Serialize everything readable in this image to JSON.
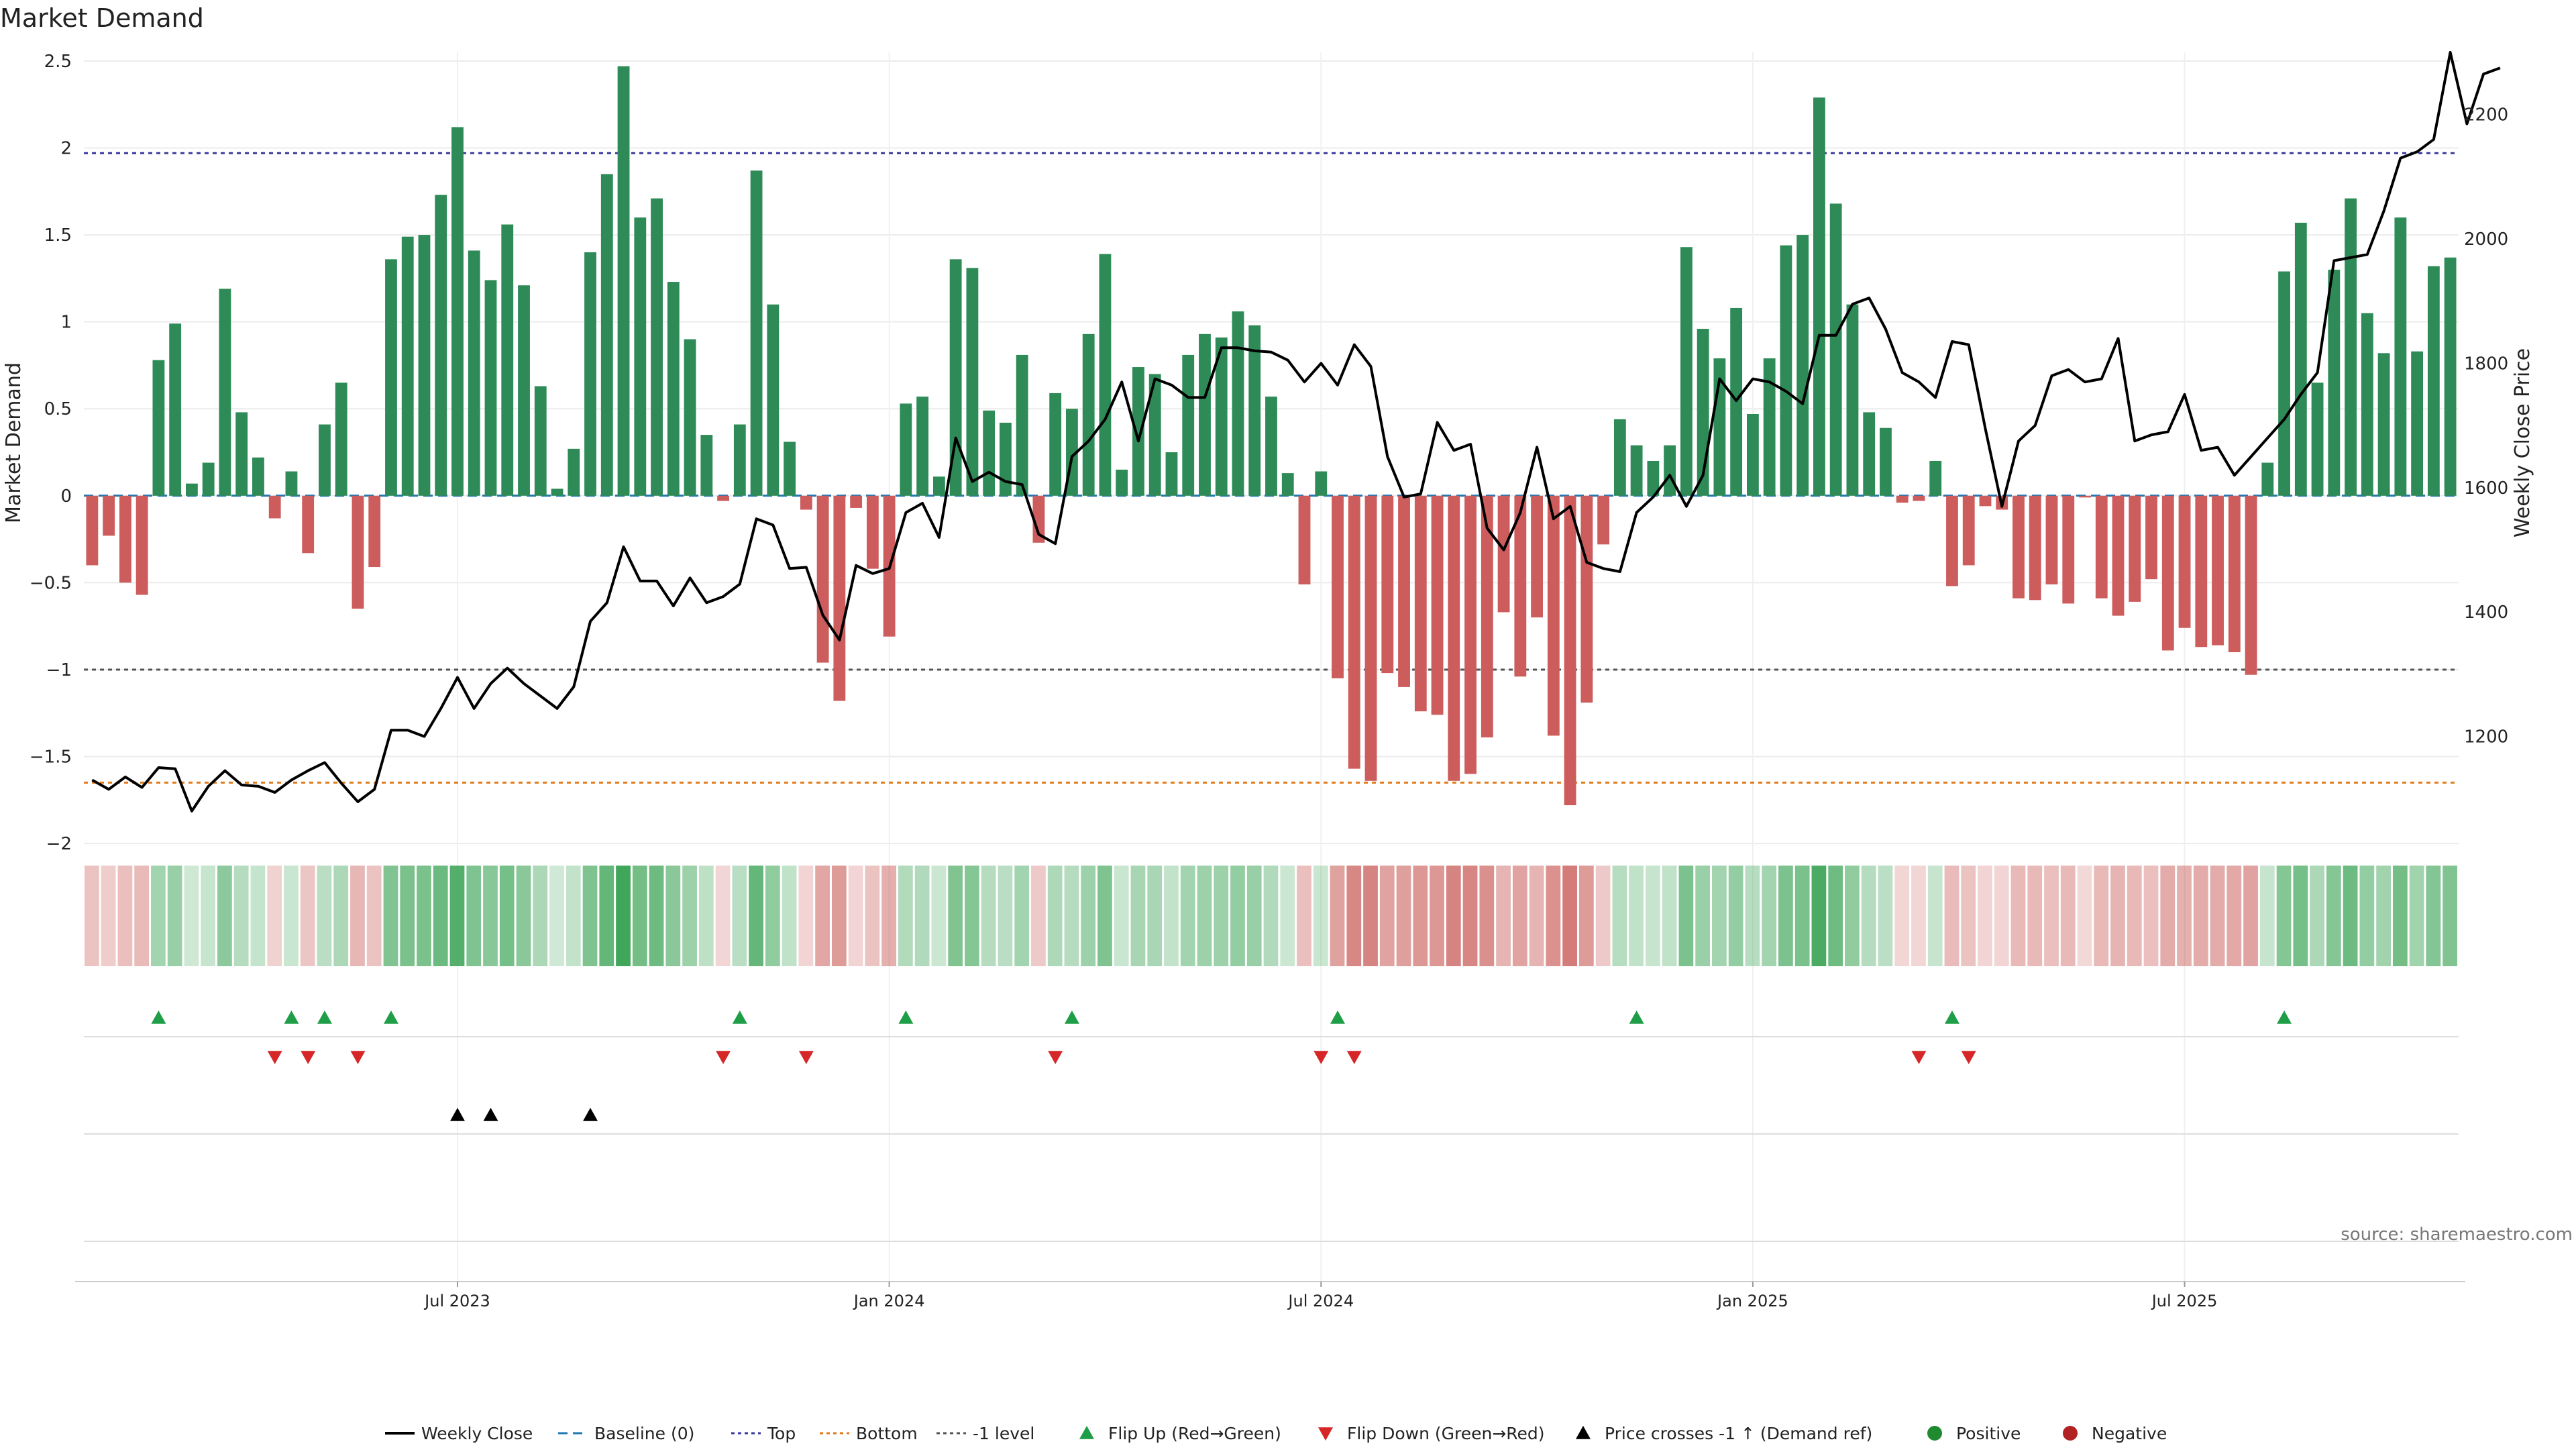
{
  "chart_data": {
    "type": "bar",
    "title": "Market Demand",
    "ylabel": "Market Demand",
    "y2label": "Weekly Close Price",
    "source": "source: sharemaestro.com",
    "ylim": [
      -2.1,
      2.55
    ],
    "y2lim": [
      1000,
      2300
    ],
    "y_ticks": [
      {
        "v": 2.5,
        "label": "2.5"
      },
      {
        "v": 2,
        "label": "2"
      },
      {
        "v": 1.5,
        "label": "1.5"
      },
      {
        "v": 1,
        "label": "1"
      },
      {
        "v": 0.5,
        "label": "0.5"
      },
      {
        "v": 0,
        "label": "0"
      },
      {
        "v": -0.5,
        "label": "−0.5"
      },
      {
        "v": -1,
        "label": "−1"
      },
      {
        "v": -1.5,
        "label": "−1.5"
      },
      {
        "v": -2,
        "label": "−2"
      }
    ],
    "y2_ticks": [
      {
        "v": 2200,
        "label": "2200"
      },
      {
        "v": 2000,
        "label": "2000"
      },
      {
        "v": 1800,
        "label": "1800"
      },
      {
        "v": 1600,
        "label": "1600"
      },
      {
        "v": 1400,
        "label": "1400"
      },
      {
        "v": 1200,
        "label": "1200"
      }
    ],
    "x_ticks": [
      {
        "i": 22,
        "label": "Jul 2023"
      },
      {
        "i": 48,
        "label": "Jan 2024"
      },
      {
        "i": 74,
        "label": "Jul 2024"
      },
      {
        "i": 100,
        "label": "Jan 2025"
      },
      {
        "i": 126,
        "label": "Jul 2025"
      }
    ],
    "reference_lines": {
      "top": 1.97,
      "bottom": -1.65,
      "minus_one": -1.0
    },
    "demand": [
      -0.4,
      -0.23,
      -0.5,
      -0.57,
      0.78,
      0.99,
      0.07,
      0.19,
      1.19,
      0.48,
      0.22,
      -0.13,
      0.14,
      -0.33,
      0.41,
      0.65,
      -0.65,
      -0.41,
      1.36,
      1.49,
      1.5,
      1.73,
      2.12,
      1.41,
      1.24,
      1.56,
      1.21,
      0.63,
      0.04,
      0.27,
      1.4,
      1.85,
      2.47,
      1.6,
      1.71,
      1.23,
      0.9,
      0.35,
      -0.03,
      0.41,
      1.87,
      1.1,
      0.31,
      -0.08,
      -0.96,
      -1.18,
      -0.07,
      -0.42,
      -0.81,
      0.53,
      0.57,
      0.11,
      1.36,
      1.31,
      0.49,
      0.42,
      0.81,
      -0.27,
      0.59,
      0.5,
      0.93,
      1.39,
      0.15,
      0.74,
      0.7,
      0.25,
      0.81,
      0.93,
      0.91,
      1.06,
      0.98,
      0.57,
      0.13,
      -0.51,
      0.14,
      -1.05,
      -1.57,
      -1.64,
      -1.02,
      -1.1,
      -1.24,
      -1.26,
      -1.64,
      -1.6,
      -1.39,
      -0.67,
      -1.04,
      -0.7,
      -1.38,
      -1.78,
      -1.19,
      -0.28,
      0.44,
      0.29,
      0.2,
      0.29,
      1.43,
      0.96,
      0.79,
      1.08,
      0.47,
      0.79,
      1.44,
      1.5,
      2.29,
      1.68,
      1.1,
      0.48,
      0.39,
      -0.04,
      -0.03,
      0.2,
      -0.52,
      -0.4,
      -0.06,
      -0.08,
      -0.59,
      -0.6,
      -0.51,
      -0.62,
      -0.01,
      -0.59,
      -0.69,
      -0.61,
      -0.48,
      -0.89,
      -0.76,
      -0.87,
      -0.86,
      -0.9,
      -1.03,
      0.19,
      1.29,
      1.57,
      0.65,
      1.3,
      1.71,
      1.05,
      0.82,
      1.6,
      0.83,
      1.32,
      1.37
    ],
    "weekly_close": [
      1130,
      1115,
      1135,
      1118,
      1150,
      1148,
      1080,
      1120,
      1145,
      1122,
      1120,
      1110,
      1130,
      1145,
      1158,
      1125,
      1095,
      1115,
      1210,
      1210,
      1200,
      1245,
      1295,
      1245,
      1285,
      1310,
      1285,
      1265,
      1245,
      1280,
      1385,
      1415,
      1505,
      1450,
      1450,
      1410,
      1455,
      1415,
      1425,
      1445,
      1550,
      1540,
      1470,
      1472,
      1395,
      1355,
      1475,
      1462,
      1470,
      1560,
      1575,
      1520,
      1680,
      1610,
      1625,
      1610,
      1605,
      1525,
      1510,
      1650,
      1675,
      1710,
      1770,
      1675,
      1775,
      1765,
      1745,
      1745,
      1825,
      1825,
      1820,
      1818,
      1805,
      1770,
      1800,
      1765,
      1830,
      1795,
      1650,
      1585,
      1590,
      1705,
      1660,
      1670,
      1535,
      1500,
      1560,
      1665,
      1550,
      1570,
      1480,
      1470,
      1465,
      1560,
      1585,
      1620,
      1570,
      1620,
      1775,
      1740,
      1775,
      1770,
      1755,
      1735,
      1845,
      1845,
      1895,
      1905,
      1855,
      1785,
      1770,
      1745,
      1835,
      1830,
      1695,
      1570,
      1675,
      1700,
      1780,
      1790,
      1770,
      1775,
      1840,
      1675,
      1685,
      1690,
      1750,
      1660,
      1665,
      1620,
      1650,
      1680,
      1710,
      1750,
      1785,
      1965,
      1970,
      1975,
      2045,
      2130,
      2140,
      2160,
      2300,
      2185,
      2265,
      2275
    ],
    "flip_up_idx": [
      4,
      12,
      14,
      18,
      39,
      49,
      59,
      75,
      93,
      112,
      132
    ],
    "flip_down_idx": [
      11,
      13,
      16,
      38,
      43,
      58,
      74,
      76,
      110,
      113
    ],
    "price_cross_idx": [
      22,
      24,
      30
    ],
    "legend": [
      {
        "label": "Weekly Close",
        "marker": "line",
        "color": "#000000"
      },
      {
        "label": "Baseline (0)",
        "marker": "dash",
        "color": "#1f77b4"
      },
      {
        "label": "Top",
        "marker": "dot",
        "color": "#3a3a9a"
      },
      {
        "label": "Bottom",
        "marker": "dot",
        "color": "#e07b1a"
      },
      {
        "label": "-1 level",
        "marker": "dot",
        "color": "#555555"
      },
      {
        "label": "Flip Up (Red→Green)",
        "marker": "tri-up",
        "color": "#1e9e46"
      },
      {
        "label": "Flip Down (Green→Red)",
        "marker": "tri-down",
        "color": "#d62728"
      },
      {
        "label": "Price crosses -1 ↑ (Demand ref)",
        "marker": "tri-up",
        "color": "#000000"
      },
      {
        "label": "Positive",
        "marker": "circle",
        "color": "#1f8a30"
      },
      {
        "label": "Negative",
        "marker": "circle",
        "color": "#b22222"
      }
    ],
    "colors": {
      "positive_bar": "#2e8b57",
      "negative_bar": "#cd5c5c",
      "close_line": "#000000",
      "baseline": "#1f77b4",
      "top": "#3a3a9a",
      "bottom": "#e07b1a",
      "minus_one": "#555555",
      "flip_up": "#1e9e46",
      "flip_down": "#d62728",
      "cross": "#000000"
    }
  }
}
